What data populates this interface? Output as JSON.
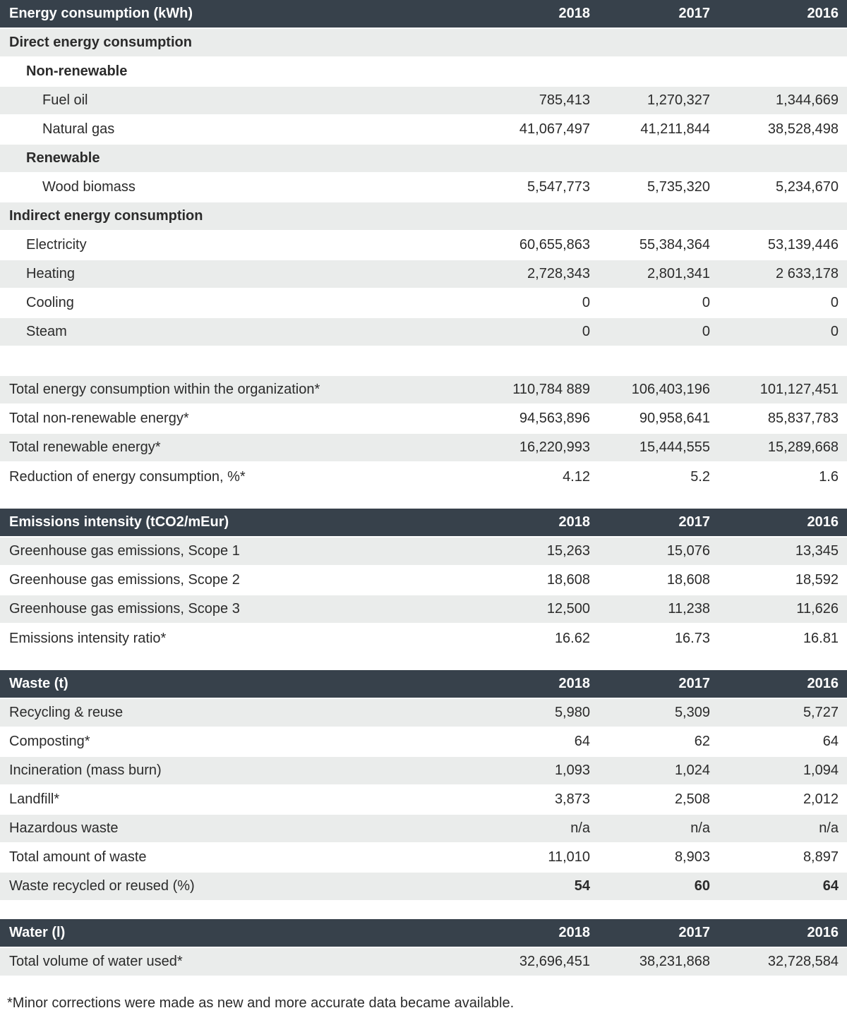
{
  "years": [
    "2018",
    "2017",
    "2016"
  ],
  "colors": {
    "section_header_bg": "#37414b",
    "section_header_text": "#ffffff",
    "shaded_row_bg": "#eaeceb",
    "text": "#2b2b2b"
  },
  "footnote": "*Minor corrections were made as new and more accurate data became available.",
  "sections": [
    {
      "title": "Energy consumption (kWh)",
      "rows": [
        {
          "label": "Direct energy consumption",
          "indent": 0,
          "bold": true,
          "shaded": true,
          "values": [
            "",
            "",
            ""
          ]
        },
        {
          "label": "Non-renewable",
          "indent": 1,
          "bold": true,
          "shaded": false,
          "values": [
            "",
            "",
            ""
          ]
        },
        {
          "label": "Fuel oil",
          "indent": 2,
          "shaded": true,
          "values": [
            "785,413",
            "1,270,327",
            "1,344,669"
          ]
        },
        {
          "label": "Natural gas",
          "indent": 2,
          "shaded": false,
          "values": [
            "41,067,497",
            "41,211,844",
            "38,528,498"
          ]
        },
        {
          "label": "Renewable",
          "indent": 1,
          "bold": true,
          "shaded": true,
          "values": [
            "",
            "",
            ""
          ]
        },
        {
          "label": "Wood biomass",
          "indent": 2,
          "shaded": false,
          "values": [
            "5,547,773",
            "5,735,320",
            "5,234,670"
          ]
        },
        {
          "label": "Indirect energy consumption",
          "indent": 0,
          "bold": true,
          "shaded": true,
          "values": [
            "",
            "",
            ""
          ]
        },
        {
          "label": "Electricity",
          "indent": 1,
          "shaded": false,
          "values": [
            "60,655,863",
            "55,384,364",
            "53,139,446"
          ]
        },
        {
          "label": "Heating",
          "indent": 1,
          "shaded": true,
          "values": [
            "2,728,343",
            "2,801,341",
            "2 633,178"
          ]
        },
        {
          "label": "Cooling",
          "indent": 1,
          "shaded": false,
          "values": [
            "0",
            "0",
            "0"
          ]
        },
        {
          "label": "Steam",
          "indent": 1,
          "shaded": true,
          "values": [
            "0",
            "0",
            "0"
          ]
        },
        {
          "spacer": true
        },
        {
          "label": "Total energy consumption within the organization*",
          "indent": 0,
          "shaded": true,
          "values": [
            "110,784 889",
            "106,403,196",
            "101,127,451"
          ]
        },
        {
          "label": "Total non-renewable energy*",
          "indent": 0,
          "shaded": false,
          "values": [
            "94,563,896",
            "90,958,641",
            "85,837,783"
          ]
        },
        {
          "label": "Total renewable energy*",
          "indent": 0,
          "shaded": true,
          "values": [
            "16,220,993",
            "15,444,555",
            "15,289,668"
          ]
        },
        {
          "label": "Reduction of energy consumption, %*",
          "indent": 0,
          "shaded": false,
          "values": [
            "4.12",
            "5.2",
            "1.6"
          ]
        }
      ]
    },
    {
      "title": "Emissions intensity (tCO2/mEur)",
      "rows": [
        {
          "label": "Greenhouse gas emissions, Scope 1",
          "indent": 0,
          "shaded": true,
          "values": [
            "15,263",
            "15,076",
            "13,345"
          ]
        },
        {
          "label": "Greenhouse gas emissions, Scope 2",
          "indent": 0,
          "shaded": false,
          "values": [
            "18,608",
            "18,608",
            "18,592"
          ]
        },
        {
          "label": "Greenhouse gas emissions, Scope 3",
          "indent": 0,
          "shaded": true,
          "values": [
            "12,500",
            "11,238",
            "11,626"
          ]
        },
        {
          "label": "Emissions intensity ratio*",
          "indent": 0,
          "shaded": false,
          "values": [
            "16.62",
            "16.73",
            "16.81"
          ]
        }
      ]
    },
    {
      "title": "Waste (t)",
      "rows": [
        {
          "label": "Recycling & reuse",
          "indent": 0,
          "shaded": true,
          "values": [
            "5,980",
            "5,309",
            "5,727"
          ]
        },
        {
          "label": "Composting*",
          "indent": 0,
          "shaded": false,
          "values": [
            "64",
            "62",
            "64"
          ]
        },
        {
          "label": "Incineration (mass burn)",
          "indent": 0,
          "shaded": true,
          "values": [
            "1,093",
            "1,024",
            "1,094"
          ]
        },
        {
          "label": "Landfill*",
          "indent": 0,
          "shaded": false,
          "values": [
            "3,873",
            "2,508",
            "2,012"
          ]
        },
        {
          "label": "Hazardous waste",
          "indent": 0,
          "shaded": true,
          "values": [
            "n/a",
            "n/a",
            "n/a"
          ]
        },
        {
          "label": "Total amount of waste",
          "indent": 0,
          "shaded": false,
          "values": [
            "11,010",
            "8,903",
            "8,897"
          ]
        },
        {
          "label": "Waste recycled or reused (%)",
          "indent": 0,
          "shaded": true,
          "bold_values": true,
          "values": [
            "54",
            "60",
            "64"
          ]
        }
      ]
    },
    {
      "title": "Water (l)",
      "rows": [
        {
          "label": "Total volume of water used*",
          "indent": 0,
          "shaded": true,
          "values": [
            "32,696,451",
            "38,231,868",
            "32,728,584"
          ]
        }
      ]
    }
  ]
}
